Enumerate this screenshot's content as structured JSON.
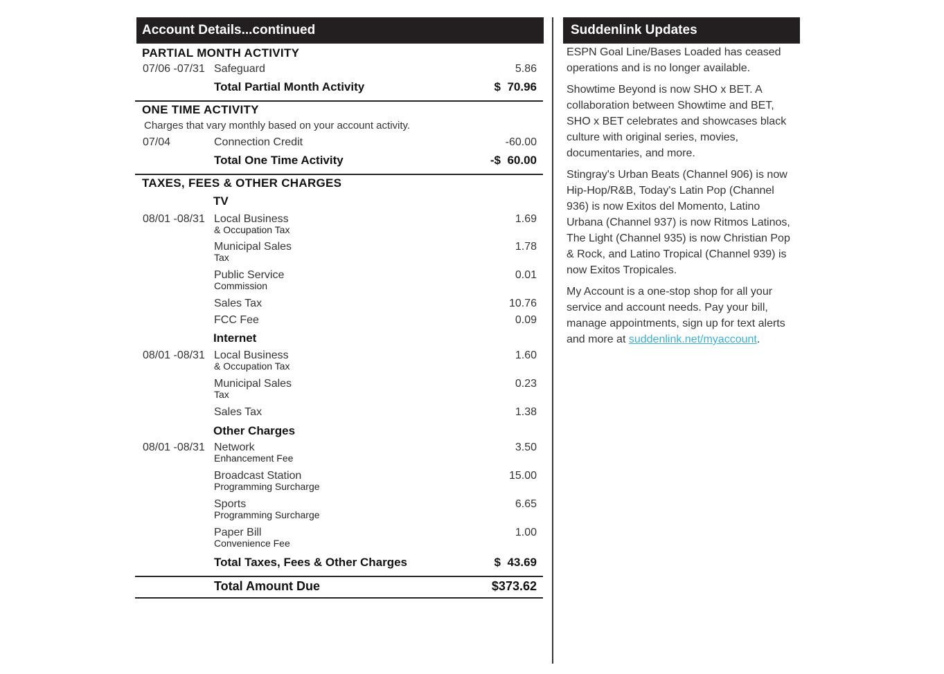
{
  "left": {
    "title": "Account Details...continued",
    "partial": {
      "heading": "PARTIAL MONTH ACTIVITY",
      "items": [
        {
          "date": "07/06 -07/31",
          "desc": "Safeguard",
          "amount": "5.86"
        }
      ],
      "total_label": "Total Partial Month Activity",
      "total_amount": "$  70.96"
    },
    "one_time": {
      "heading": "ONE TIME ACTIVITY",
      "note": "Charges that vary monthly based on your account activity.",
      "items": [
        {
          "date": "07/04",
          "desc": "Connection Credit",
          "amount": "-60.00"
        }
      ],
      "total_label": "Total One Time Activity",
      "total_amount": "-$  60.00"
    },
    "taxes": {
      "heading": "TAXES, FEES & OTHER CHARGES",
      "groups": [
        {
          "name": "TV",
          "items": [
            {
              "date": "08/01 -08/31",
              "desc": "Local Business",
              "sub": "& Occupation Tax",
              "amount": "1.69"
            },
            {
              "date": "",
              "desc": "Municipal Sales",
              "sub": "Tax",
              "amount": "1.78"
            },
            {
              "date": "",
              "desc": "Public Service",
              "sub": "Commission",
              "amount": "0.01"
            },
            {
              "date": "",
              "desc": "Sales Tax",
              "sub": "",
              "amount": "10.76"
            },
            {
              "date": "",
              "desc": "FCC Fee",
              "sub": "",
              "amount": "0.09"
            }
          ]
        },
        {
          "name": "Internet",
          "items": [
            {
              "date": "08/01 -08/31",
              "desc": "Local Business",
              "sub": "& Occupation Tax",
              "amount": "1.60"
            },
            {
              "date": "",
              "desc": "Municipal Sales",
              "sub": "Tax",
              "amount": "0.23"
            },
            {
              "date": "",
              "desc": "Sales Tax",
              "sub": "",
              "amount": "1.38"
            }
          ]
        },
        {
          "name": "Other Charges",
          "items": [
            {
              "date": "08/01 -08/31",
              "desc": "Network",
              "sub": "Enhancement Fee",
              "amount": "3.50"
            },
            {
              "date": "",
              "desc": "Broadcast Station",
              "sub": "Programming Surcharge",
              "amount": "15.00"
            },
            {
              "date": "",
              "desc": "Sports",
              "sub": "Programming Surcharge",
              "amount": "6.65"
            },
            {
              "date": "",
              "desc": "Paper Bill",
              "sub": "Convenience Fee",
              "amount": "1.00"
            }
          ]
        }
      ],
      "total_label": "Total Taxes, Fees & Other Charges",
      "total_amount": "$  43.69"
    },
    "grand_total_label": "Total Amount Due",
    "grand_total_amount": "$373.62"
  },
  "right": {
    "title": "Suddenlink Updates",
    "paragraphs": [
      "ESPN Goal Line/Bases Loaded has ceased operations and is no longer available.",
      "Showtime Beyond is now SHO x BET. A collaboration between Showtime and BET, SHO x BET celebrates and showcases black culture with original series, movies, documentaries, and more.",
      "Stingray's Urban Beats (Channel 906) is now Hip-Hop/R&B, Today's Latin Pop (Channel 936) is now Exitos del Momento, Latino Urbana (Channel 937) is now Ritmos Latinos, The Light (Channel 935) is now Christian Pop & Rock, and Latino Tropical (Channel 939) is now Exitos Tropicales."
    ],
    "last_paragraph": "My Account is a one-stop shop for all your service and account needs. Pay your bill, manage appointments, sign up for text alerts and more at",
    "link": "suddenlink.net/myaccount",
    "link_suffix": ".",
    "link_color": "#3ab0d6"
  }
}
